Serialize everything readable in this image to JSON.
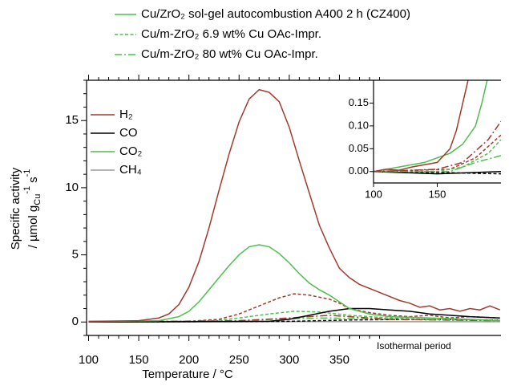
{
  "legend_samples": [
    {
      "name": "Cu/ZrO₂ sol-gel autocombustion A400 2 h (CZ400)",
      "dash": "solid",
      "color": "#4cbf4c"
    },
    {
      "name": "Cu/m-ZrO₂ 6.9 wt% Cu OAc-Impr.",
      "dash": "dashed",
      "color": "#4cbf4c"
    },
    {
      "name": "Cu/m-ZrO₂ 80 wt% Cu OAc-Impr.",
      "dash": "dashdot",
      "color": "#4cbf4c"
    }
  ],
  "chart_data": [
    {
      "type": "line",
      "x_label": "Temperature / °C",
      "y_label": {
        "line1": "Specific activity",
        "line2": "/ µmol g",
        "sub": "Cu",
        "sup1": "-1",
        "unit2": "s",
        "sup2": "-1"
      },
      "annotation": "Isothermal period",
      "legend_species": [
        {
          "name": "H₂",
          "color": "#a23a2c"
        },
        {
          "name": "CO",
          "color": "#000000"
        },
        {
          "name": "CO₂",
          "color": "#4cbf4c"
        },
        {
          "name": "CH₄",
          "color": "#9a9a9a"
        }
      ],
      "xlim": [
        98,
        511
      ],
      "ylim": [
        -1,
        18
      ],
      "xticks": [
        100,
        150,
        200,
        250,
        300,
        350
      ],
      "yticks": [
        0,
        5,
        10,
        15
      ],
      "xminorticks": [
        110,
        120,
        130,
        140,
        160,
        170,
        180,
        190,
        210,
        220,
        230,
        240,
        260,
        270,
        280,
        290,
        310,
        320,
        330,
        340,
        360,
        370,
        380,
        390
      ],
      "yminorticks": [
        -1,
        1,
        2,
        3,
        4,
        6,
        7,
        8,
        9,
        11,
        12,
        13,
        14,
        16,
        17,
        18
      ],
      "series": [
        {
          "color": "#9a9a9a",
          "dash": "solid",
          "x": [
            100,
            300,
            510
          ],
          "values": [
            0,
            0.03,
            0.02
          ]
        },
        {
          "color": "#000000",
          "dash": "dashed",
          "x": [
            100,
            300,
            360,
            420,
            510
          ],
          "values": [
            0,
            0.05,
            0.15,
            0.2,
            0.15
          ]
        },
        {
          "color": "#4cbf4c",
          "dash": "dashdot",
          "x": [
            100,
            250,
            300,
            340,
            400,
            510
          ],
          "values": [
            0,
            0.1,
            0.25,
            0.3,
            0.2,
            0.1
          ]
        },
        {
          "color": "#a23a2c",
          "dash": "dashdot",
          "x": [
            100,
            250,
            300,
            340,
            360,
            400,
            510
          ],
          "values": [
            0,
            0.1,
            0.3,
            0.5,
            0.4,
            0.2,
            0.1
          ]
        },
        {
          "color": "#4cbf4c",
          "dash": "dashed",
          "x": [
            100,
            220,
            250,
            280,
            305,
            330,
            360,
            400,
            440,
            510
          ],
          "values": [
            0,
            0.05,
            0.3,
            0.6,
            0.8,
            0.75,
            0.5,
            0.3,
            0.2,
            0.15
          ]
        },
        {
          "color": "#a23a2c",
          "dash": "dashed",
          "x": [
            100,
            200,
            230,
            250,
            270,
            290,
            305,
            320,
            340,
            350,
            360,
            380,
            400,
            420,
            440,
            460,
            480,
            510
          ],
          "values": [
            0,
            0.05,
            0.2,
            0.6,
            1.2,
            1.8,
            2.1,
            2.0,
            1.7,
            1.4,
            1.0,
            0.7,
            0.5,
            0.4,
            0.5,
            0.3,
            0.4,
            0.3
          ]
        },
        {
          "color": "#000000",
          "dash": "solid",
          "x": [
            100,
            280,
            300,
            320,
            340,
            360,
            380,
            400,
            420,
            440,
            460,
            480,
            510
          ],
          "values": [
            0,
            0.05,
            0.2,
            0.5,
            0.8,
            1.0,
            1.0,
            0.9,
            0.8,
            0.6,
            0.5,
            0.4,
            0.3
          ]
        },
        {
          "color": "#4cbf4c",
          "dash": "solid",
          "x": [
            100,
            170,
            190,
            200,
            210,
            220,
            230,
            240,
            250,
            260,
            270,
            280,
            290,
            300,
            310,
            320,
            330,
            340,
            350,
            360,
            380,
            400,
            440,
            480,
            510
          ],
          "values": [
            0.02,
            0.1,
            0.4,
            0.8,
            1.5,
            2.4,
            3.3,
            4.2,
            5.0,
            5.6,
            5.75,
            5.6,
            5.1,
            4.4,
            3.6,
            2.9,
            2.4,
            2.0,
            1.5,
            1.0,
            0.6,
            0.4,
            0.3,
            0.2,
            0.1
          ]
        },
        {
          "color": "#a23a2c",
          "dash": "solid",
          "x": [
            100,
            150,
            170,
            180,
            190,
            200,
            210,
            220,
            230,
            240,
            250,
            260,
            270,
            280,
            290,
            300,
            310,
            320,
            330,
            340,
            350,
            360,
            370,
            380,
            390,
            400,
            410,
            420,
            430,
            440,
            450,
            460,
            470,
            480,
            490,
            500,
            510
          ],
          "values": [
            0.05,
            0.1,
            0.3,
            0.6,
            1.3,
            2.6,
            4.5,
            7,
            9.8,
            12.5,
            14.9,
            16.6,
            17.3,
            17.1,
            16.4,
            14.5,
            12,
            9.6,
            7.2,
            5.5,
            4.0,
            3.3,
            2.8,
            2.5,
            2.2,
            1.9,
            1.6,
            1.4,
            1.1,
            1.2,
            0.9,
            1.0,
            0.8,
            1.0,
            0.9,
            1.2,
            0.9
          ]
        }
      ]
    },
    {
      "type": "line",
      "xlim": [
        100,
        200
      ],
      "ylim": [
        -0.025,
        0.2
      ],
      "xticks": [
        100,
        150
      ],
      "yticks": [
        {
          "value": 0,
          "label": "0.00"
        },
        {
          "value": 0.05,
          "label": "0.05"
        },
        {
          "value": 0.1,
          "label": "0.10"
        },
        {
          "value": 0.15,
          "label": "0.15"
        }
      ],
      "series": [
        {
          "color": "#000000",
          "dash": "dashed",
          "x": [
            100,
            150,
            200
          ],
          "values": [
            0,
            -0.002,
            -0.005
          ]
        },
        {
          "color": "#000000",
          "dash": "solid",
          "x": [
            100,
            150,
            200
          ],
          "values": [
            0,
            -0.005,
            0
          ]
        },
        {
          "color": "#4cbf4c",
          "dash": "dashdot",
          "x": [
            100,
            160,
            180,
            200
          ],
          "values": [
            0,
            0,
            0.02,
            0.035
          ]
        },
        {
          "color": "#a23a2c",
          "dash": "dashed",
          "x": [
            100,
            160,
            180,
            200
          ],
          "values": [
            0,
            0.005,
            0.03,
            0.08
          ]
        },
        {
          "color": "#4cbf4c",
          "dash": "dashed",
          "x": [
            100,
            150,
            170,
            190,
            200
          ],
          "values": [
            0,
            0,
            0.01,
            0.04,
            0.07
          ]
        },
        {
          "color": "#a23a2c",
          "dash": "dashdot",
          "x": [
            100,
            150,
            170,
            190,
            200
          ],
          "values": [
            0,
            0.005,
            0.02,
            0.07,
            0.11
          ]
        },
        {
          "color": "#4cbf4c",
          "dash": "solid",
          "x": [
            100,
            120,
            140,
            150,
            160,
            170,
            180,
            185,
            190
          ],
          "values": [
            0,
            0.01,
            0.02,
            0.03,
            0.04,
            0.06,
            0.1,
            0.15,
            0.21
          ]
        },
        {
          "color": "#a23a2c",
          "dash": "solid",
          "x": [
            100,
            110,
            120,
            130,
            140,
            150,
            160,
            165,
            170,
            175
          ],
          "values": [
            0,
            0.005,
            0.003,
            0.01,
            0.015,
            0.02,
            0.05,
            0.09,
            0.15,
            0.21
          ]
        }
      ]
    }
  ]
}
